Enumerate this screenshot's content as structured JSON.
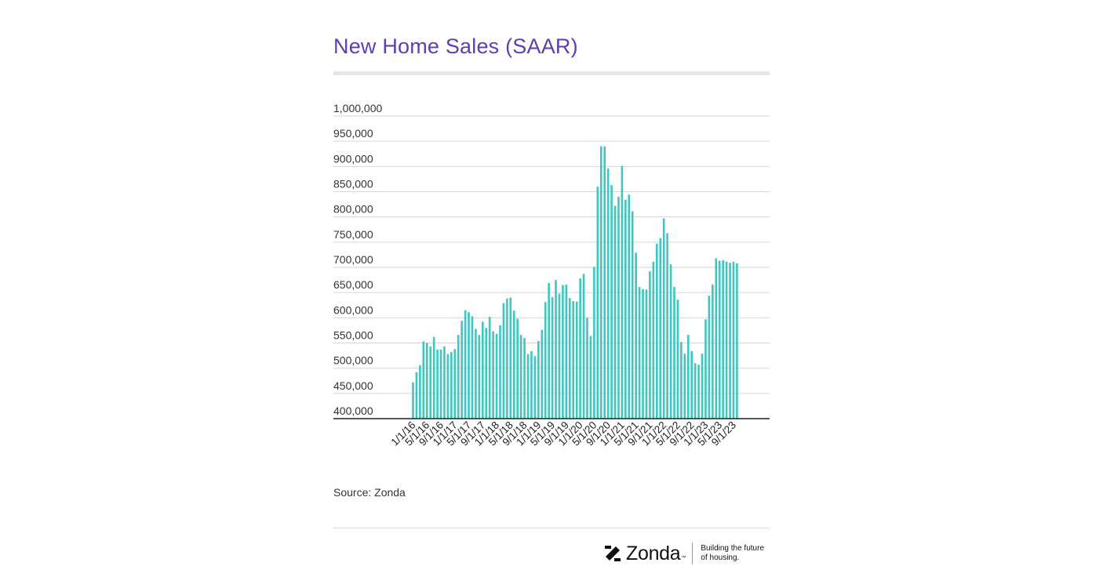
{
  "chart_data": {
    "type": "bar",
    "title": "New Home Sales (SAAR)",
    "source": "Source: Zonda",
    "ylim": [
      400000,
      1000000
    ],
    "yticks": [
      400000,
      450000,
      500000,
      550000,
      600000,
      650000,
      700000,
      750000,
      800000,
      850000,
      900000,
      950000,
      1000000
    ],
    "ytick_labels": [
      "400,000",
      "450,000",
      "500,000",
      "550,000",
      "600,000",
      "650,000",
      "700,000",
      "750,000",
      "800,000",
      "850,000",
      "900,000",
      "950,000",
      "1,000,000"
    ],
    "grid": true,
    "color": "#3cc8c0",
    "tick_labels": [
      "1/1/16",
      "5/1/16",
      "9/1/16",
      "1/1/17",
      "5/1/17",
      "9/1/17",
      "1/1/18",
      "5/1/18",
      "9/1/18",
      "1/1/19",
      "5/1/19",
      "9/1/19",
      "1/1/20",
      "5/1/20",
      "9/1/20",
      "1/1/21",
      "5/1/21",
      "9/1/21",
      "1/1/22",
      "5/1/22",
      "9/1/22",
      "1/1/23",
      "5/1/23",
      "9/1/23"
    ],
    "values": [
      472000,
      492000,
      506000,
      553000,
      550000,
      543000,
      562000,
      537000,
      537000,
      543000,
      528000,
      532000,
      538000,
      566000,
      594000,
      615000,
      611000,
      603000,
      578000,
      566000,
      592000,
      580000,
      602000,
      573000,
      568000,
      585000,
      629000,
      638000,
      640000,
      614000,
      598000,
      566000,
      560000,
      528000,
      534000,
      524000,
      554000,
      576000,
      631000,
      669000,
      641000,
      675000,
      648000,
      665000,
      666000,
      639000,
      633000,
      632000,
      678000,
      687000,
      600000,
      564000,
      701000,
      860000,
      940000,
      940000,
      896000,
      863000,
      822000,
      840000,
      901000,
      834000,
      844000,
      811000,
      729000,
      661000,
      657000,
      656000,
      692000,
      711000,
      747000,
      758000,
      797000,
      768000,
      706000,
      661000,
      636000,
      552000,
      529000,
      566000,
      534000,
      510000,
      507000,
      529000,
      597000,
      644000,
      666000,
      718000,
      713000,
      714000,
      711000,
      709000,
      711000,
      708000
    ]
  },
  "brand": {
    "name": "Zonda",
    "tm": "™",
    "tagline_line1": "Building the future",
    "tagline_line2": "of housing."
  }
}
